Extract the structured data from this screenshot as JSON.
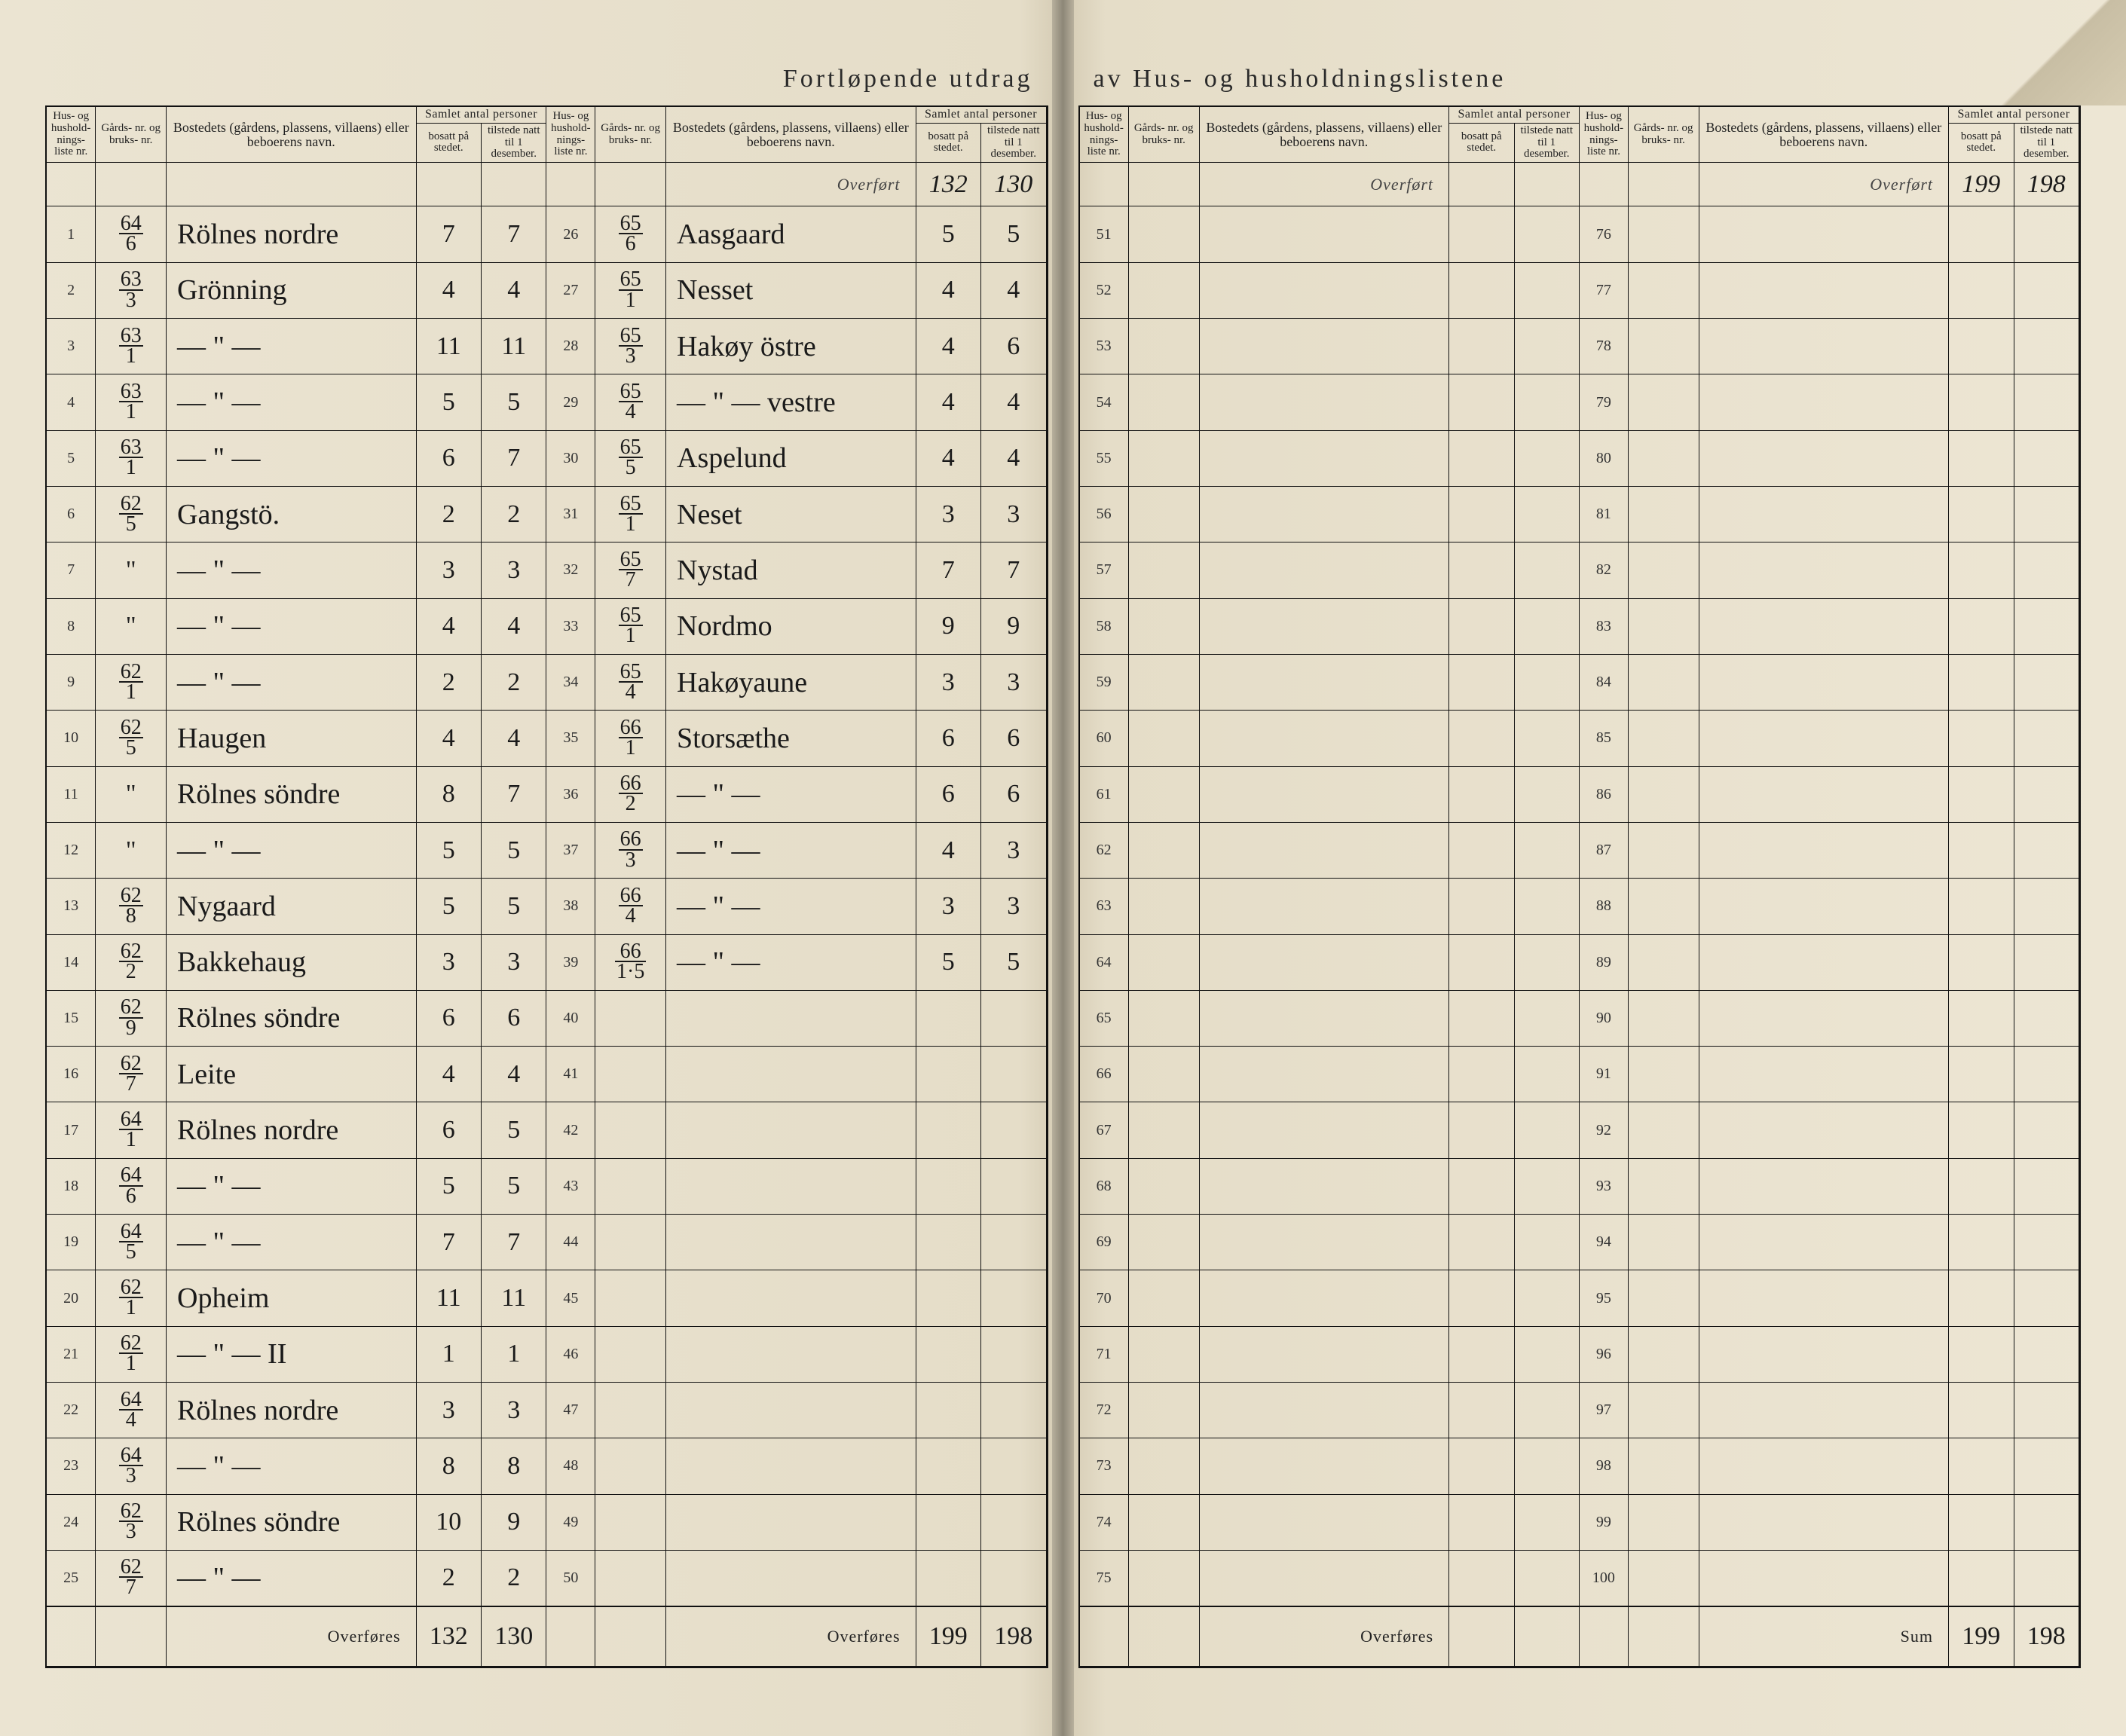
{
  "document": {
    "title_left": "Fortløpende utdrag",
    "title_right": "av Hus- og husholdningslistene",
    "background_color": "#e8e0cc",
    "ink_color": "#1a1a1a",
    "rule_color": "#111111"
  },
  "headers": {
    "hus_nr": "Hus- og hushold- nings- liste nr.",
    "gards_nr": "Gårds- nr. og bruks- nr.",
    "bosted": "Bostedets (gårdens, plassens, villaens) eller beboerens navn.",
    "samlet_group": "Samlet antal personer",
    "bosatt": "bosatt på stedet.",
    "tilstede": "tilstede natt til 1 desember."
  },
  "labels": {
    "overfort": "Overført",
    "overfores": "Overføres",
    "sum": "Sum"
  },
  "carry": {
    "panel2_in_bosatt": "132",
    "panel2_in_tilstede": "130",
    "panel4_in_bosatt": "199",
    "panel4_in_tilstede": "198",
    "panel1_out_bosatt": "132",
    "panel1_out_tilstede": "130",
    "panel2_out_bosatt": "199",
    "panel2_out_tilstede": "198",
    "sum_bosatt": "199",
    "sum_tilstede": "198"
  },
  "panel1": [
    {
      "nr": "1",
      "g": "64",
      "b": "6",
      "name": "Rölnes nordre",
      "bo": "7",
      "ti": "7"
    },
    {
      "nr": "2",
      "g": "63",
      "b": "3",
      "name": "Grönning",
      "bo": "4",
      "ti": "4"
    },
    {
      "nr": "3",
      "g": "63",
      "b": "1",
      "name": "— \" —",
      "bo": "11",
      "ti": "11"
    },
    {
      "nr": "4",
      "g": "63",
      "b": "1",
      "name": "— \" —",
      "bo": "5",
      "ti": "5"
    },
    {
      "nr": "5",
      "g": "63",
      "b": "1",
      "name": "— \" —",
      "bo": "6",
      "ti": "7"
    },
    {
      "nr": "6",
      "g": "62",
      "b": "5",
      "name": "Gangstö.",
      "bo": "2",
      "ti": "2"
    },
    {
      "nr": "7",
      "g": "\"",
      "b": "",
      "name": "— \" —",
      "bo": "3",
      "ti": "3"
    },
    {
      "nr": "8",
      "g": "\"",
      "b": "",
      "name": "— \" —",
      "bo": "4",
      "ti": "4"
    },
    {
      "nr": "9",
      "g": "62",
      "b": "1",
      "name": "— \" —",
      "bo": "2",
      "ti": "2"
    },
    {
      "nr": "10",
      "g": "62",
      "b": "5",
      "name": "Haugen",
      "bo": "4",
      "ti": "4"
    },
    {
      "nr": "11",
      "g": "\"",
      "b": "",
      "name": "Rölnes söndre",
      "bo": "8",
      "ti": "7"
    },
    {
      "nr": "12",
      "g": "\"",
      "b": "",
      "name": "— \" —",
      "bo": "5",
      "ti": "5"
    },
    {
      "nr": "13",
      "g": "62",
      "b": "8",
      "name": "Nygaard",
      "bo": "5",
      "ti": "5"
    },
    {
      "nr": "14",
      "g": "62",
      "b": "2",
      "name": "Bakkehaug",
      "bo": "3",
      "ti": "3"
    },
    {
      "nr": "15",
      "g": "62",
      "b": "9",
      "name": "Rölnes söndre",
      "bo": "6",
      "ti": "6"
    },
    {
      "nr": "16",
      "g": "62",
      "b": "7",
      "name": "Leite",
      "bo": "4",
      "ti": "4"
    },
    {
      "nr": "17",
      "g": "64",
      "b": "1",
      "name": "Rölnes nordre",
      "bo": "6",
      "ti": "5"
    },
    {
      "nr": "18",
      "g": "64",
      "b": "6",
      "name": "— \" —",
      "bo": "5",
      "ti": "5"
    },
    {
      "nr": "19",
      "g": "64",
      "b": "5",
      "name": "— \" —",
      "bo": "7",
      "ti": "7"
    },
    {
      "nr": "20",
      "g": "62",
      "b": "1",
      "name": "Opheim",
      "bo": "11",
      "ti": "11"
    },
    {
      "nr": "21",
      "g": "62",
      "b": "1",
      "name": "— \" —   II",
      "bo": "1",
      "ti": "1"
    },
    {
      "nr": "22",
      "g": "64",
      "b": "4",
      "name": "Rölnes nordre",
      "bo": "3",
      "ti": "3"
    },
    {
      "nr": "23",
      "g": "64",
      "b": "3",
      "name": "— \" —",
      "bo": "8",
      "ti": "8"
    },
    {
      "nr": "24",
      "g": "62",
      "b": "3",
      "name": "Rölnes söndre",
      "bo": "10",
      "ti": "9"
    },
    {
      "nr": "25",
      "g": "62",
      "b": "7",
      "name": "— \" —",
      "bo": "2",
      "ti": "2"
    }
  ],
  "panel2": [
    {
      "nr": "26",
      "g": "65",
      "b": "6",
      "name": "Aasgaard",
      "bo": "5",
      "ti": "5"
    },
    {
      "nr": "27",
      "g": "65",
      "b": "1",
      "name": "Nesset",
      "bo": "4",
      "ti": "4"
    },
    {
      "nr": "28",
      "g": "65",
      "b": "3",
      "name": "Hakøy östre",
      "bo": "4",
      "ti": "6"
    },
    {
      "nr": "29",
      "g": "65",
      "b": "4",
      "name": "— \" —  vestre",
      "bo": "4",
      "ti": "4"
    },
    {
      "nr": "30",
      "g": "65",
      "b": "5",
      "name": "Aspelund",
      "bo": "4",
      "ti": "4"
    },
    {
      "nr": "31",
      "g": "65",
      "b": "1",
      "name": "Neset",
      "bo": "3",
      "ti": "3"
    },
    {
      "nr": "32",
      "g": "65",
      "b": "7",
      "name": "Nystad",
      "bo": "7",
      "ti": "7"
    },
    {
      "nr": "33",
      "g": "65",
      "b": "1",
      "name": "Nordmo",
      "bo": "9",
      "ti": "9"
    },
    {
      "nr": "34",
      "g": "65",
      "b": "4",
      "name": "Hakøyaune",
      "bo": "3",
      "ti": "3"
    },
    {
      "nr": "35",
      "g": "66",
      "b": "1",
      "name": "Storsæthe",
      "bo": "6",
      "ti": "6"
    },
    {
      "nr": "36",
      "g": "66",
      "b": "2",
      "name": "— \" —",
      "bo": "6",
      "ti": "6"
    },
    {
      "nr": "37",
      "g": "66",
      "b": "3",
      "name": "— \" —",
      "bo": "4",
      "ti": "3"
    },
    {
      "nr": "38",
      "g": "66",
      "b": "4",
      "name": "— \" —",
      "bo": "3",
      "ti": "3"
    },
    {
      "nr": "39",
      "g": "66",
      "b": "1·5",
      "name": "— \" —",
      "bo": "5",
      "ti": "5"
    },
    {
      "nr": "40"
    },
    {
      "nr": "41"
    },
    {
      "nr": "42"
    },
    {
      "nr": "43"
    },
    {
      "nr": "44"
    },
    {
      "nr": "45"
    },
    {
      "nr": "46"
    },
    {
      "nr": "47"
    },
    {
      "nr": "48"
    },
    {
      "nr": "49"
    },
    {
      "nr": "50"
    }
  ],
  "panel3": [
    {
      "nr": "51"
    },
    {
      "nr": "52"
    },
    {
      "nr": "53"
    },
    {
      "nr": "54"
    },
    {
      "nr": "55"
    },
    {
      "nr": "56"
    },
    {
      "nr": "57"
    },
    {
      "nr": "58"
    },
    {
      "nr": "59"
    },
    {
      "nr": "60"
    },
    {
      "nr": "61"
    },
    {
      "nr": "62"
    },
    {
      "nr": "63"
    },
    {
      "nr": "64"
    },
    {
      "nr": "65"
    },
    {
      "nr": "66"
    },
    {
      "nr": "67"
    },
    {
      "nr": "68"
    },
    {
      "nr": "69"
    },
    {
      "nr": "70"
    },
    {
      "nr": "71"
    },
    {
      "nr": "72"
    },
    {
      "nr": "73"
    },
    {
      "nr": "74"
    },
    {
      "nr": "75"
    }
  ],
  "panel4": [
    {
      "nr": "76"
    },
    {
      "nr": "77"
    },
    {
      "nr": "78"
    },
    {
      "nr": "79"
    },
    {
      "nr": "80"
    },
    {
      "nr": "81"
    },
    {
      "nr": "82"
    },
    {
      "nr": "83"
    },
    {
      "nr": "84"
    },
    {
      "nr": "85"
    },
    {
      "nr": "86"
    },
    {
      "nr": "87"
    },
    {
      "nr": "88"
    },
    {
      "nr": "89"
    },
    {
      "nr": "90"
    },
    {
      "nr": "91"
    },
    {
      "nr": "92"
    },
    {
      "nr": "93"
    },
    {
      "nr": "94"
    },
    {
      "nr": "95"
    },
    {
      "nr": "96"
    },
    {
      "nr": "97"
    },
    {
      "nr": "98"
    },
    {
      "nr": "99"
    },
    {
      "nr": "100"
    }
  ]
}
